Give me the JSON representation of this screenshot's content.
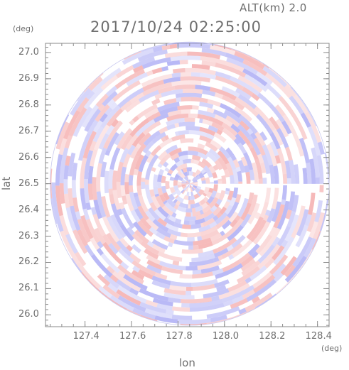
{
  "header": {
    "altitude_label": "ALT(km) 2.0",
    "timestamp": "2017/10/24 02:25:00"
  },
  "axes": {
    "y_unit": "(deg)",
    "x_unit": "(deg)",
    "ylabel": "lat",
    "xlabel": "lon"
  },
  "colors": {
    "positive": "#f29a9a",
    "negative": "#9a9af2",
    "axis": "#8a8a8a",
    "text": "#6e6e6e"
  },
  "chart_data": {
    "type": "heatmap",
    "title": "2017/10/24 02:25:00",
    "subtitle": "ALT(km) 2.0",
    "xlabel": "lon",
    "ylabel": "lat",
    "x_unit": "(deg)",
    "y_unit": "(deg)",
    "xlim": [
      127.23,
      128.45
    ],
    "ylim": [
      25.955,
      27.035
    ],
    "x_ticks": [
      127.4,
      127.6,
      127.8,
      128.0,
      128.2,
      128.4
    ],
    "y_ticks": [
      26.0,
      26.1,
      26.2,
      26.3,
      26.4,
      26.5,
      26.6,
      26.7,
      26.8,
      26.9,
      27.0
    ],
    "x_tick_labels": [
      "127.4",
      "127.6",
      "127.8",
      "128.0",
      "128.2",
      "128.4"
    ],
    "y_tick_labels": [
      "26.0",
      "26.1",
      "26.2",
      "26.3",
      "26.4",
      "26.5",
      "26.6",
      "26.7",
      "26.8",
      "26.9",
      "27.0"
    ],
    "center": {
      "lon": 127.85,
      "lat": 26.5
    },
    "coverage_radius_deg": {
      "lon": 0.6,
      "lat": 0.54
    },
    "color_scale": {
      "negative": "blue",
      "zero": "white",
      "positive": "red"
    },
    "grid": false
  }
}
